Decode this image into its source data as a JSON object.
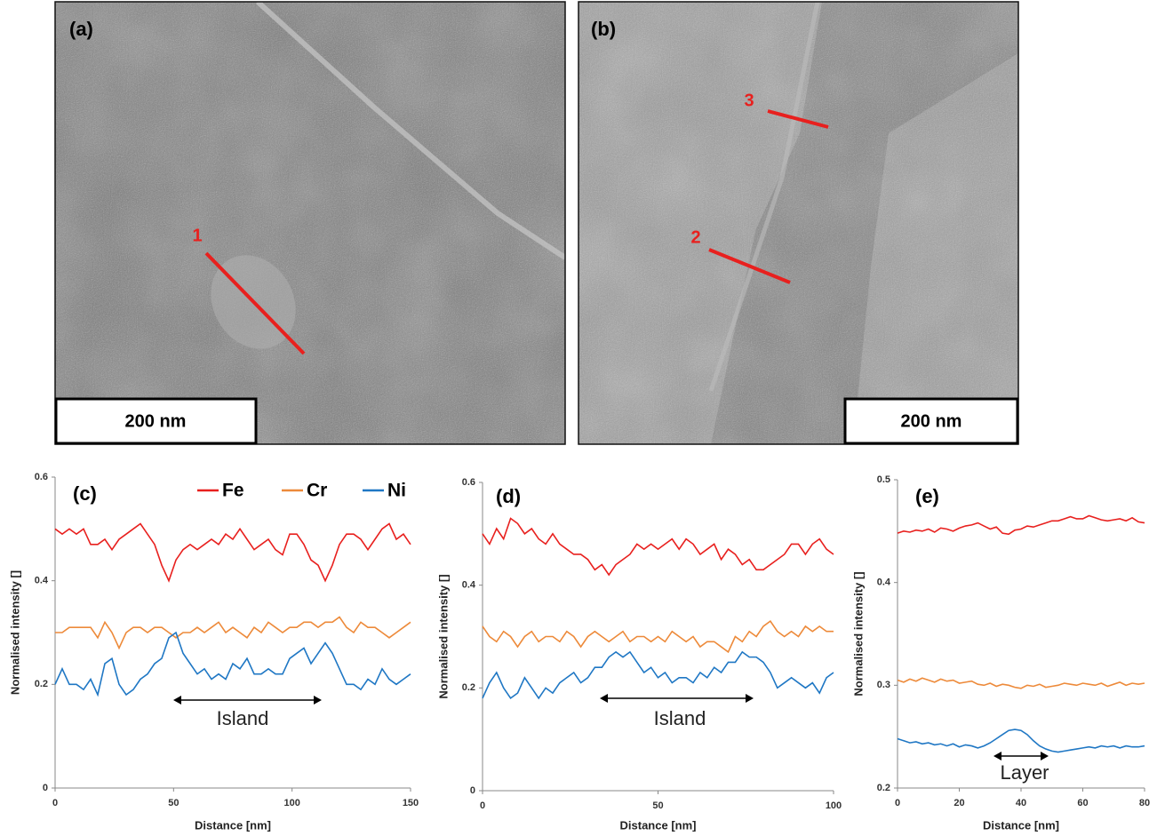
{
  "images": [
    {
      "label": "(a)",
      "scale_bar": "200 nm",
      "markers": [
        "1"
      ]
    },
    {
      "label": "(b)",
      "scale_bar": "200 nm",
      "markers": [
        "3",
        "2"
      ]
    }
  ],
  "chart_data": [
    {
      "type": "line",
      "title": "(c)",
      "xlabel": "Distance [nm]",
      "ylabel": "Normalised intensity []",
      "annotation": "Island",
      "legend": "top",
      "xlim": [
        0,
        150
      ],
      "xticks": [
        0,
        50,
        100,
        150
      ],
      "ylim": [
        0,
        0.6
      ],
      "yticks": [
        0,
        0.2,
        0.4,
        0.6
      ],
      "x": [
        0,
        3,
        6,
        9,
        12,
        15,
        18,
        21,
        24,
        27,
        30,
        33,
        36,
        39,
        42,
        45,
        48,
        51,
        54,
        57,
        60,
        63,
        66,
        69,
        72,
        75,
        78,
        81,
        84,
        87,
        90,
        93,
        96,
        99,
        102,
        105,
        108,
        111,
        114,
        117,
        120,
        123,
        126,
        129,
        132,
        135,
        138,
        141,
        144,
        147,
        150
      ],
      "series": [
        {
          "name": "Fe",
          "color": "#e8201e",
          "values": [
            0.5,
            0.49,
            0.5,
            0.49,
            0.5,
            0.47,
            0.47,
            0.48,
            0.46,
            0.48,
            0.49,
            0.5,
            0.51,
            0.49,
            0.47,
            0.43,
            0.4,
            0.44,
            0.46,
            0.47,
            0.46,
            0.47,
            0.48,
            0.47,
            0.49,
            0.48,
            0.5,
            0.48,
            0.46,
            0.47,
            0.48,
            0.46,
            0.45,
            0.49,
            0.49,
            0.47,
            0.44,
            0.43,
            0.4,
            0.43,
            0.47,
            0.49,
            0.49,
            0.48,
            0.46,
            0.48,
            0.5,
            0.51,
            0.48,
            0.49,
            0.47
          ]
        },
        {
          "name": "Cr",
          "color": "#ed8a3a",
          "values": [
            0.3,
            0.3,
            0.31,
            0.31,
            0.31,
            0.31,
            0.29,
            0.32,
            0.3,
            0.27,
            0.3,
            0.31,
            0.31,
            0.3,
            0.31,
            0.31,
            0.3,
            0.29,
            0.3,
            0.3,
            0.31,
            0.3,
            0.31,
            0.32,
            0.3,
            0.31,
            0.3,
            0.29,
            0.31,
            0.3,
            0.32,
            0.31,
            0.3,
            0.31,
            0.31,
            0.32,
            0.32,
            0.31,
            0.32,
            0.32,
            0.33,
            0.31,
            0.3,
            0.32,
            0.31,
            0.31,
            0.3,
            0.29,
            0.3,
            0.31,
            0.32
          ]
        },
        {
          "name": "Ni",
          "color": "#1f77c4",
          "values": [
            0.2,
            0.23,
            0.2,
            0.2,
            0.19,
            0.21,
            0.18,
            0.24,
            0.25,
            0.2,
            0.18,
            0.19,
            0.21,
            0.22,
            0.24,
            0.25,
            0.29,
            0.3,
            0.26,
            0.24,
            0.22,
            0.23,
            0.21,
            0.22,
            0.21,
            0.24,
            0.23,
            0.25,
            0.22,
            0.22,
            0.23,
            0.22,
            0.22,
            0.25,
            0.26,
            0.27,
            0.24,
            0.26,
            0.28,
            0.26,
            0.23,
            0.2,
            0.2,
            0.19,
            0.21,
            0.2,
            0.23,
            0.21,
            0.2,
            0.21,
            0.22
          ]
        }
      ]
    },
    {
      "type": "line",
      "title": "(d)",
      "xlabel": "Distance [nm]",
      "ylabel": "Normalised intensity []",
      "annotation": "Island",
      "xlim": [
        0,
        100
      ],
      "xticks": [
        0,
        50,
        100
      ],
      "ylim": [
        0,
        0.6
      ],
      "yticks": [
        0,
        0.2,
        0.4,
        0.6
      ],
      "x": [
        0,
        2,
        4,
        6,
        8,
        10,
        12,
        14,
        16,
        18,
        20,
        22,
        24,
        26,
        28,
        30,
        32,
        34,
        36,
        38,
        40,
        42,
        44,
        46,
        48,
        50,
        52,
        54,
        56,
        58,
        60,
        62,
        64,
        66,
        68,
        70,
        72,
        74,
        76,
        78,
        80,
        82,
        84,
        86,
        88,
        90,
        92,
        94,
        96,
        98,
        100
      ],
      "series": [
        {
          "color": "#e8201e",
          "values": [
            0.5,
            0.48,
            0.51,
            0.49,
            0.53,
            0.52,
            0.5,
            0.51,
            0.49,
            0.48,
            0.5,
            0.48,
            0.47,
            0.46,
            0.46,
            0.45,
            0.43,
            0.44,
            0.42,
            0.44,
            0.45,
            0.46,
            0.48,
            0.47,
            0.48,
            0.47,
            0.48,
            0.49,
            0.47,
            0.49,
            0.48,
            0.46,
            0.47,
            0.48,
            0.45,
            0.47,
            0.46,
            0.44,
            0.45,
            0.43,
            0.43,
            0.44,
            0.45,
            0.46,
            0.48,
            0.48,
            0.46,
            0.48,
            0.49,
            0.47,
            0.46
          ]
        },
        {
          "color": "#ed8a3a",
          "values": [
            0.32,
            0.3,
            0.29,
            0.31,
            0.3,
            0.28,
            0.3,
            0.31,
            0.29,
            0.3,
            0.3,
            0.29,
            0.31,
            0.3,
            0.28,
            0.3,
            0.31,
            0.3,
            0.29,
            0.3,
            0.31,
            0.29,
            0.3,
            0.3,
            0.29,
            0.3,
            0.29,
            0.31,
            0.3,
            0.29,
            0.3,
            0.28,
            0.29,
            0.29,
            0.28,
            0.27,
            0.3,
            0.29,
            0.31,
            0.3,
            0.32,
            0.33,
            0.31,
            0.3,
            0.31,
            0.3,
            0.32,
            0.31,
            0.32,
            0.31,
            0.31
          ]
        },
        {
          "color": "#1f77c4",
          "values": [
            0.18,
            0.21,
            0.23,
            0.2,
            0.18,
            0.19,
            0.22,
            0.2,
            0.18,
            0.2,
            0.19,
            0.21,
            0.22,
            0.23,
            0.21,
            0.22,
            0.24,
            0.24,
            0.26,
            0.27,
            0.26,
            0.27,
            0.25,
            0.23,
            0.24,
            0.22,
            0.23,
            0.21,
            0.22,
            0.22,
            0.21,
            0.23,
            0.22,
            0.24,
            0.23,
            0.25,
            0.25,
            0.27,
            0.26,
            0.26,
            0.25,
            0.23,
            0.2,
            0.21,
            0.22,
            0.21,
            0.2,
            0.21,
            0.19,
            0.22,
            0.23
          ]
        }
      ]
    },
    {
      "type": "line",
      "title": "(e)",
      "xlabel": "Distance [nm]",
      "ylabel": "Normalised intensity []",
      "annotation": "Layer",
      "xlim": [
        0,
        80
      ],
      "xticks": [
        0,
        20,
        40,
        60,
        80
      ],
      "ylim": [
        0.2,
        0.5
      ],
      "yticks": [
        0.2,
        0.3,
        0.4,
        0.5
      ],
      "x": [
        0,
        2,
        4,
        6,
        8,
        10,
        12,
        14,
        16,
        18,
        20,
        22,
        24,
        26,
        28,
        30,
        32,
        34,
        36,
        38,
        40,
        42,
        44,
        46,
        48,
        50,
        52,
        54,
        56,
        58,
        60,
        62,
        64,
        66,
        68,
        70,
        72,
        74,
        76,
        78,
        80
      ],
      "series": [
        {
          "color": "#e8201e",
          "values": [
            0.448,
            0.45,
            0.449,
            0.451,
            0.45,
            0.452,
            0.449,
            0.453,
            0.452,
            0.45,
            0.453,
            0.455,
            0.456,
            0.458,
            0.455,
            0.452,
            0.454,
            0.448,
            0.447,
            0.451,
            0.452,
            0.455,
            0.454,
            0.456,
            0.458,
            0.46,
            0.46,
            0.462,
            0.464,
            0.462,
            0.462,
            0.465,
            0.463,
            0.461,
            0.46,
            0.461,
            0.462,
            0.46,
            0.463,
            0.459,
            0.458
          ]
        },
        {
          "color": "#ed8a3a",
          "values": [
            0.305,
            0.303,
            0.306,
            0.304,
            0.307,
            0.305,
            0.303,
            0.306,
            0.304,
            0.305,
            0.302,
            0.303,
            0.304,
            0.301,
            0.3,
            0.302,
            0.299,
            0.301,
            0.3,
            0.298,
            0.297,
            0.3,
            0.299,
            0.301,
            0.298,
            0.299,
            0.3,
            0.302,
            0.301,
            0.3,
            0.302,
            0.301,
            0.3,
            0.302,
            0.299,
            0.301,
            0.303,
            0.3,
            0.302,
            0.301,
            0.302
          ]
        },
        {
          "color": "#1f77c4",
          "values": [
            0.248,
            0.246,
            0.244,
            0.245,
            0.243,
            0.244,
            0.242,
            0.243,
            0.241,
            0.243,
            0.24,
            0.242,
            0.241,
            0.239,
            0.241,
            0.244,
            0.248,
            0.252,
            0.256,
            0.257,
            0.256,
            0.252,
            0.246,
            0.241,
            0.238,
            0.236,
            0.235,
            0.236,
            0.237,
            0.238,
            0.239,
            0.24,
            0.239,
            0.241,
            0.24,
            0.241,
            0.239,
            0.241,
            0.24,
            0.24,
            0.241
          ]
        }
      ]
    }
  ]
}
